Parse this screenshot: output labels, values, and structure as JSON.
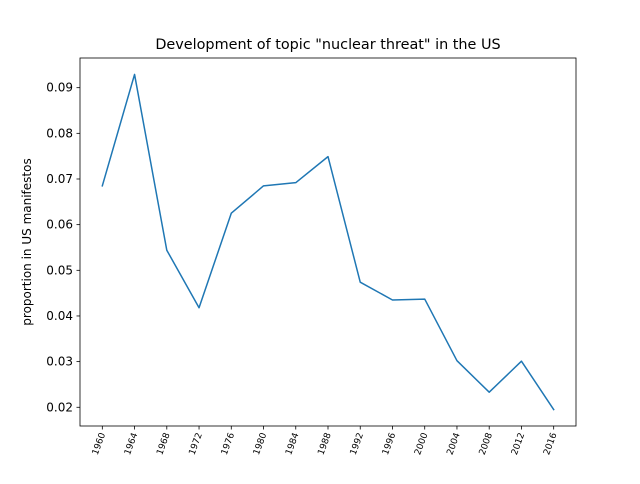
{
  "chart_data": {
    "type": "line",
    "title": "Development of topic \"nuclear threat\" in the US",
    "xlabel": "",
    "ylabel": "proportion in US manifestos",
    "x": [
      "1960",
      "1964",
      "1968",
      "1972",
      "1976",
      "1980",
      "1984",
      "1988",
      "1992",
      "1996",
      "2000",
      "2004",
      "2008",
      "2012",
      "2016"
    ],
    "series": [
      {
        "values": [
          0.0685,
          0.0929,
          0.0544,
          0.0418,
          0.0625,
          0.0685,
          0.0692,
          0.0749,
          0.0474,
          0.0435,
          0.0437,
          0.0302,
          0.0233,
          0.0301,
          0.0195
        ],
        "color": "#1f77b4"
      }
    ],
    "ylim": [
      0.0159,
      0.0965
    ],
    "yticks": [
      0.02,
      0.03,
      0.04,
      0.05,
      0.06,
      0.07,
      0.08,
      0.09
    ],
    "ytick_labels": [
      "0.02",
      "0.03",
      "0.04",
      "0.05",
      "0.06",
      "0.07",
      "0.08",
      "0.09"
    ],
    "grid": false,
    "legend": "none",
    "xtick_rotation": 70
  }
}
